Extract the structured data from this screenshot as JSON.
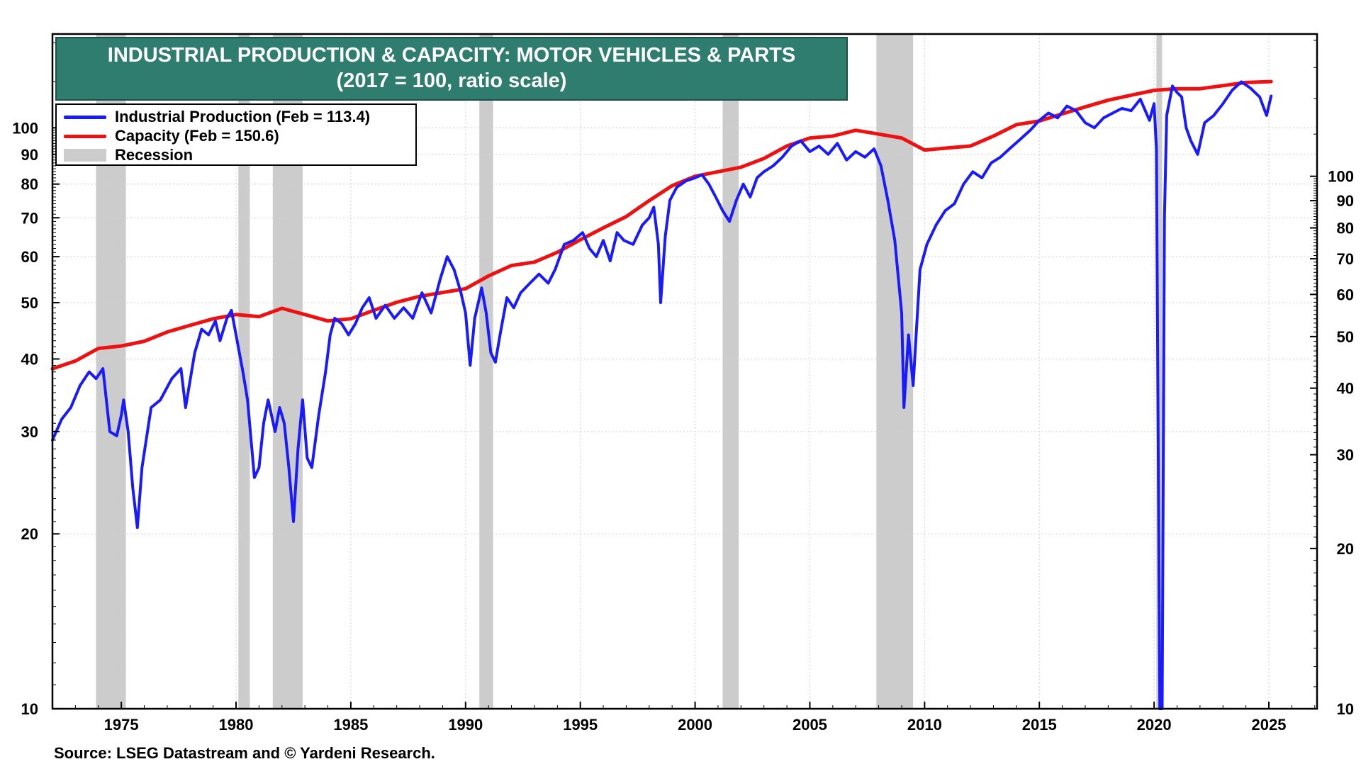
{
  "chart_data": {
    "type": "line",
    "title": "INDUSTRIAL PRODUCTION & CAPACITY: MOTOR VEHICLES & PARTS",
    "subtitle": "(2017 = 100, ratio scale)",
    "scale": "log",
    "x_range": [
      1972,
      2027.1
    ],
    "x_ticks": [
      1975,
      1980,
      1985,
      1990,
      1995,
      2000,
      2005,
      2010,
      2015,
      2020,
      2025
    ],
    "left_axis": {
      "range": [
        10,
        145
      ],
      "ticks": [
        10,
        20,
        30,
        40,
        50,
        60,
        70,
        80,
        90,
        100
      ]
    },
    "right_axis": {
      "range": [
        10,
        185
      ],
      "ticks": [
        10,
        20,
        30,
        40,
        50,
        60,
        70,
        80,
        90,
        100
      ]
    },
    "legend": [
      {
        "label": "Industrial Production (Feb = 113.4)",
        "color": "#1a1aff",
        "kind": "line"
      },
      {
        "label": "Capacity (Feb = 150.6)",
        "color": "#ee1111",
        "kind": "line"
      },
      {
        "label": "Recession",
        "color": "#cccccc",
        "kind": "box"
      }
    ],
    "recessions": [
      [
        1973.9,
        1975.2
      ],
      [
        1980.1,
        1980.6
      ],
      [
        1981.6,
        1982.9
      ],
      [
        1990.6,
        1991.2
      ],
      [
        2001.2,
        2001.9
      ],
      [
        2007.9,
        2009.5
      ],
      [
        2020.1,
        2020.35
      ]
    ],
    "series": [
      {
        "name": "Industrial Production",
        "axis": "left",
        "color": "#1a1aff",
        "points": [
          [
            1972.0,
            29
          ],
          [
            1972.4,
            31.5
          ],
          [
            1972.8,
            33
          ],
          [
            1973.2,
            36
          ],
          [
            1973.6,
            38
          ],
          [
            1973.9,
            37
          ],
          [
            1974.2,
            38.5
          ],
          [
            1974.5,
            30
          ],
          [
            1974.8,
            29.5
          ],
          [
            1975.0,
            32
          ],
          [
            1975.1,
            34
          ],
          [
            1975.3,
            30
          ],
          [
            1975.5,
            24
          ],
          [
            1975.7,
            20.5
          ],
          [
            1975.9,
            26
          ],
          [
            1976.3,
            33
          ],
          [
            1976.7,
            34
          ],
          [
            1977.2,
            37
          ],
          [
            1977.6,
            38.5
          ],
          [
            1977.8,
            33
          ],
          [
            1978.2,
            41
          ],
          [
            1978.5,
            45
          ],
          [
            1978.8,
            44
          ],
          [
            1979.1,
            46.5
          ],
          [
            1979.3,
            43
          ],
          [
            1979.6,
            47
          ],
          [
            1979.8,
            48.5
          ],
          [
            1980.0,
            44
          ],
          [
            1980.3,
            38
          ],
          [
            1980.5,
            34
          ],
          [
            1980.8,
            25
          ],
          [
            1981.0,
            26
          ],
          [
            1981.2,
            31
          ],
          [
            1981.4,
            34
          ],
          [
            1981.7,
            30
          ],
          [
            1981.9,
            33
          ],
          [
            1982.1,
            31
          ],
          [
            1982.3,
            26
          ],
          [
            1982.5,
            21
          ],
          [
            1982.7,
            28
          ],
          [
            1982.9,
            34
          ],
          [
            1983.1,
            27
          ],
          [
            1983.3,
            26
          ],
          [
            1983.6,
            32
          ],
          [
            1983.9,
            38
          ],
          [
            1984.1,
            44
          ],
          [
            1984.3,
            47
          ],
          [
            1984.6,
            46
          ],
          [
            1984.9,
            44
          ],
          [
            1985.2,
            46
          ],
          [
            1985.5,
            49
          ],
          [
            1985.8,
            51
          ],
          [
            1986.1,
            47
          ],
          [
            1986.5,
            49.5
          ],
          [
            1986.9,
            47
          ],
          [
            1987.3,
            49
          ],
          [
            1987.7,
            47
          ],
          [
            1988.1,
            52
          ],
          [
            1988.5,
            48
          ],
          [
            1988.9,
            55
          ],
          [
            1989.2,
            60
          ],
          [
            1989.5,
            57
          ],
          [
            1989.8,
            52
          ],
          [
            1990.0,
            48
          ],
          [
            1990.2,
            39
          ],
          [
            1990.4,
            47
          ],
          [
            1990.7,
            53
          ],
          [
            1990.9,
            48
          ],
          [
            1991.1,
            41
          ],
          [
            1991.3,
            39.5
          ],
          [
            1991.5,
            44
          ],
          [
            1991.8,
            51
          ],
          [
            1992.1,
            49
          ],
          [
            1992.4,
            52
          ],
          [
            1992.8,
            54
          ],
          [
            1993.2,
            56
          ],
          [
            1993.6,
            54
          ],
          [
            1993.9,
            57
          ],
          [
            1994.3,
            63
          ],
          [
            1994.7,
            64
          ],
          [
            1995.1,
            66
          ],
          [
            1995.4,
            62
          ],
          [
            1995.7,
            60
          ],
          [
            1996.0,
            64
          ],
          [
            1996.3,
            59
          ],
          [
            1996.6,
            66
          ],
          [
            1996.9,
            64
          ],
          [
            1997.3,
            63
          ],
          [
            1997.7,
            68
          ],
          [
            1998.0,
            70
          ],
          [
            1998.2,
            73
          ],
          [
            1998.4,
            63
          ],
          [
            1998.5,
            50
          ],
          [
            1998.7,
            65
          ],
          [
            1998.9,
            75
          ],
          [
            1999.2,
            79
          ],
          [
            1999.6,
            81
          ],
          [
            2000.0,
            82
          ],
          [
            2000.3,
            83
          ],
          [
            2000.6,
            80
          ],
          [
            2000.9,
            76
          ],
          [
            2001.2,
            72
          ],
          [
            2001.5,
            69
          ],
          [
            2001.8,
            75
          ],
          [
            2002.1,
            80
          ],
          [
            2002.4,
            76
          ],
          [
            2002.7,
            82
          ],
          [
            2003.0,
            84
          ],
          [
            2003.4,
            86
          ],
          [
            2003.8,
            89
          ],
          [
            2004.2,
            93
          ],
          [
            2004.6,
            95
          ],
          [
            2005.0,
            91
          ],
          [
            2005.4,
            93
          ],
          [
            2005.8,
            90
          ],
          [
            2006.2,
            94
          ],
          [
            2006.6,
            88
          ],
          [
            2007.0,
            91
          ],
          [
            2007.4,
            89
          ],
          [
            2007.8,
            92
          ],
          [
            2008.1,
            86
          ],
          [
            2008.4,
            75
          ],
          [
            2008.7,
            64
          ],
          [
            2009.0,
            48
          ],
          [
            2009.1,
            33
          ],
          [
            2009.3,
            44
          ],
          [
            2009.5,
            36
          ],
          [
            2009.8,
            57
          ],
          [
            2010.1,
            63
          ],
          [
            2010.5,
            68
          ],
          [
            2010.9,
            72
          ],
          [
            2011.3,
            74
          ],
          [
            2011.7,
            80
          ],
          [
            2012.1,
            84
          ],
          [
            2012.5,
            82
          ],
          [
            2012.9,
            87
          ],
          [
            2013.3,
            89
          ],
          [
            2013.7,
            92
          ],
          [
            2014.1,
            95
          ],
          [
            2014.6,
            99
          ],
          [
            2015.0,
            103
          ],
          [
            2015.4,
            106
          ],
          [
            2015.8,
            104
          ],
          [
            2016.2,
            109
          ],
          [
            2016.6,
            107
          ],
          [
            2017.0,
            102
          ],
          [
            2017.4,
            100
          ],
          [
            2017.8,
            104
          ],
          [
            2018.2,
            106
          ],
          [
            2018.6,
            108
          ],
          [
            2019.0,
            107
          ],
          [
            2019.4,
            112
          ],
          [
            2019.8,
            103
          ],
          [
            2020.0,
            110
          ],
          [
            2020.1,
            92
          ],
          [
            2020.25,
            9.5
          ],
          [
            2020.35,
            9.5
          ],
          [
            2020.45,
            70
          ],
          [
            2020.55,
            105
          ],
          [
            2020.8,
            118
          ],
          [
            2021.0,
            115
          ],
          [
            2021.2,
            113
          ],
          [
            2021.4,
            100
          ],
          [
            2021.6,
            95
          ],
          [
            2021.9,
            90
          ],
          [
            2022.2,
            102
          ],
          [
            2022.6,
            105
          ],
          [
            2023.0,
            110
          ],
          [
            2023.4,
            116
          ],
          [
            2023.8,
            120
          ],
          [
            2024.2,
            117
          ],
          [
            2024.6,
            113
          ],
          [
            2024.9,
            105
          ],
          [
            2025.1,
            113.4
          ]
        ]
      },
      {
        "name": "Capacity",
        "axis": "right",
        "color": "#ee1111",
        "points": [
          [
            1972.0,
            43.5
          ],
          [
            1973.0,
            45
          ],
          [
            1974.0,
            47.5
          ],
          [
            1975.0,
            48
          ],
          [
            1976.0,
            49
          ],
          [
            1977.0,
            51
          ],
          [
            1978.0,
            52.5
          ],
          [
            1979.0,
            54
          ],
          [
            1980.0,
            55
          ],
          [
            1981.0,
            54.5
          ],
          [
            1982.0,
            56.5
          ],
          [
            1983.0,
            55
          ],
          [
            1984.0,
            53.5
          ],
          [
            1985.0,
            54
          ],
          [
            1986.0,
            56
          ],
          [
            1987.0,
            58
          ],
          [
            1988.0,
            59.5
          ],
          [
            1989.0,
            60.5
          ],
          [
            1990.0,
            61.5
          ],
          [
            1991.0,
            65
          ],
          [
            1992.0,
            68
          ],
          [
            1993.0,
            69
          ],
          [
            1994.0,
            72
          ],
          [
            1995.0,
            76
          ],
          [
            1996.0,
            80
          ],
          [
            1997.0,
            84
          ],
          [
            1998.0,
            90
          ],
          [
            1999.0,
            96
          ],
          [
            2000.0,
            100
          ],
          [
            2001.0,
            102
          ],
          [
            2002.0,
            104
          ],
          [
            2003.0,
            108
          ],
          [
            2004.0,
            114
          ],
          [
            2005.0,
            118
          ],
          [
            2006.0,
            119
          ],
          [
            2007.0,
            122
          ],
          [
            2008.0,
            120
          ],
          [
            2009.0,
            118
          ],
          [
            2010.0,
            112
          ],
          [
            2011.0,
            113
          ],
          [
            2012.0,
            114
          ],
          [
            2013.0,
            119
          ],
          [
            2014.0,
            125
          ],
          [
            2015.0,
            127
          ],
          [
            2016.0,
            131
          ],
          [
            2017.0,
            135
          ],
          [
            2018.0,
            139
          ],
          [
            2019.0,
            142
          ],
          [
            2020.0,
            145
          ],
          [
            2021.0,
            146
          ],
          [
            2022.0,
            146
          ],
          [
            2023.0,
            148
          ],
          [
            2024.0,
            150
          ],
          [
            2025.1,
            150.6
          ]
        ]
      }
    ]
  },
  "source": "Source: LSEG Datastream and © Yardeni Research."
}
